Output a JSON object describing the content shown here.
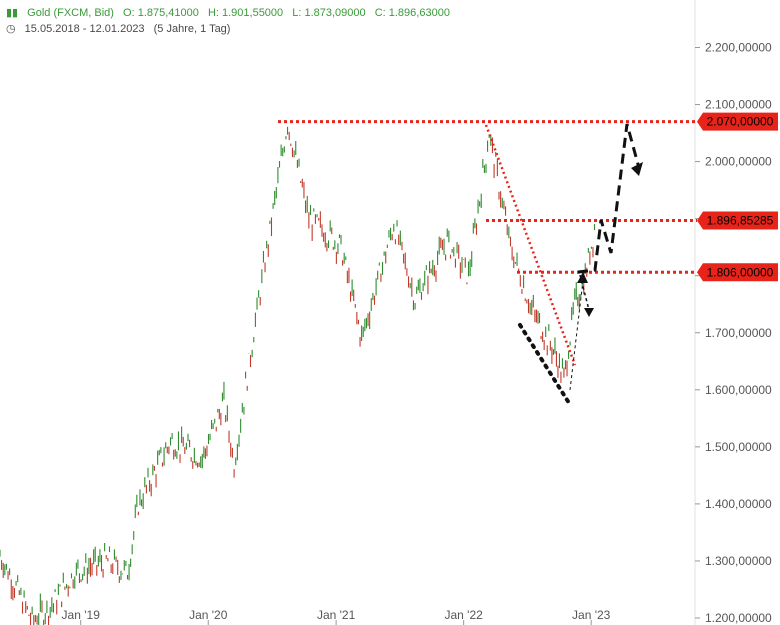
{
  "header": {
    "instrument": "Gold (FXCM, Bid)",
    "open": "O: 1.875,41000",
    "high": "H: 1.901,55000",
    "low": "L: 1.873,09000",
    "close": "C: 1.896,63000",
    "period": "15.05.2018 - 12.01.2023",
    "range": "(5 Jahre, 1 Tag)",
    "icon": "bar-chart-icon",
    "period_icon": "clock-icon"
  },
  "chart_data": {
    "type": "line",
    "series": [
      {
        "x": [
          "2018-05",
          "2018-08",
          "2018-10",
          "2018-12",
          "2019-03",
          "2019-05",
          "2019-06",
          "2019-09",
          "2019-12",
          "2020-02",
          "2020-03",
          "2020-05",
          "2020-08",
          "2020-10",
          "2020-12",
          "2021-01",
          "2021-03",
          "2021-06",
          "2021-08",
          "2021-11",
          "2022-01",
          "2022-03",
          "2022-05",
          "2022-07",
          "2022-09",
          "2022-10",
          "2022-11",
          "2022-12",
          "2023-01"
        ],
        "values": [
          1310,
          1195,
          1225,
          1280,
          1300,
          1280,
          1400,
          1510,
          1480,
          1580,
          1470,
          1720,
          2070,
          1900,
          1870,
          1850,
          1690,
          1890,
          1760,
          1860,
          1800,
          2050,
          1850,
          1740,
          1670,
          1620,
          1750,
          1800,
          1897
        ]
      }
    ],
    "x_tick_labels": [
      "Jan '19",
      "Jan '20",
      "Jan '21",
      "Jan '22",
      "Jan '23"
    ],
    "y_tick_labels": [
      "2.200,00000",
      "2.100,00000",
      "2.000,00000",
      "1.900,00000",
      "1.800,00000",
      "1.700,00000",
      "1.600,00000",
      "1.500,00000",
      "1.400,00000",
      "1.300,00000",
      "1.200,00000"
    ],
    "ylim": [
      1190,
      2300
    ],
    "xlim": [
      "2018-05-15",
      "2023-04-30"
    ],
    "levels": [
      {
        "value": 2070,
        "label": "2.070,00000"
      },
      {
        "value": 1896.85,
        "label": "1.896,85285"
      },
      {
        "value": 1806,
        "label": "1.806,00000"
      }
    ],
    "grid": false,
    "colors": {
      "up": "#2e8b2e",
      "down": "#c0392b",
      "level": "#e8231a",
      "annotation": "#111111"
    }
  }
}
